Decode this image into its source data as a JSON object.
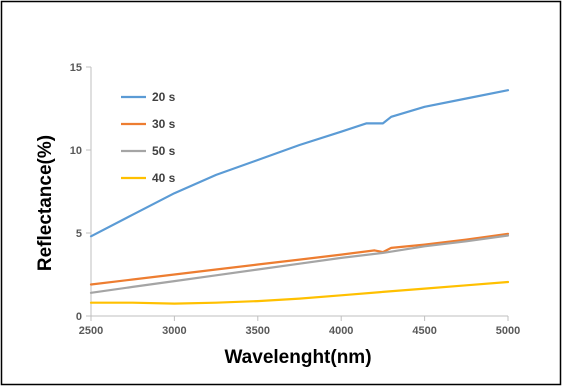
{
  "chart_data": {
    "type": "line",
    "title": "",
    "xlabel": "Wavelenght(nm)",
    "ylabel": "Reflectance(%)",
    "xlim": [
      2500,
      5000
    ],
    "ylim": [
      0,
      15
    ],
    "x_ticks": [
      "2500",
      "3000",
      "3500",
      "4000",
      "4500",
      "5000"
    ],
    "y_ticks": [
      "0",
      "5",
      "10",
      "15"
    ],
    "grid": false,
    "legend_position": "top-left",
    "series": [
      {
        "name": "20 s",
        "color": "#5b9bd5",
        "x": [
          2500,
          2750,
          3000,
          3250,
          3500,
          3750,
          4000,
          4150,
          4200,
          4250,
          4300,
          4500,
          4750,
          5000
        ],
        "values": [
          4.8,
          6.1,
          7.4,
          8.5,
          9.4,
          10.3,
          11.1,
          11.6,
          11.6,
          11.6,
          12.0,
          12.6,
          13.1,
          13.6
        ]
      },
      {
        "name": "30 s",
        "color": "#ed7d31",
        "x": [
          2500,
          2750,
          3000,
          3250,
          3500,
          3750,
          4000,
          4200,
          4250,
          4300,
          4500,
          4750,
          5000
        ],
        "values": [
          1.9,
          2.2,
          2.5,
          2.8,
          3.1,
          3.4,
          3.7,
          3.95,
          3.85,
          4.1,
          4.3,
          4.6,
          4.95
        ]
      },
      {
        "name": "50 s",
        "color": "#a5a5a5",
        "x": [
          2500,
          2750,
          3000,
          3250,
          3500,
          3750,
          4000,
          4250,
          4500,
          4750,
          5000
        ],
        "values": [
          1.4,
          1.75,
          2.1,
          2.45,
          2.8,
          3.15,
          3.5,
          3.8,
          4.2,
          4.5,
          4.85
        ]
      },
      {
        "name": "40 s",
        "color": "#ffc000",
        "x": [
          2500,
          2750,
          3000,
          3250,
          3500,
          3750,
          4000,
          4250,
          4500,
          4750,
          5000
        ],
        "values": [
          0.8,
          0.8,
          0.75,
          0.8,
          0.9,
          1.05,
          1.25,
          1.45,
          1.65,
          1.85,
          2.05
        ]
      }
    ]
  },
  "colors": {
    "axis": "#bfbfbf",
    "frame": "#000000",
    "background": "#ffffff"
  }
}
